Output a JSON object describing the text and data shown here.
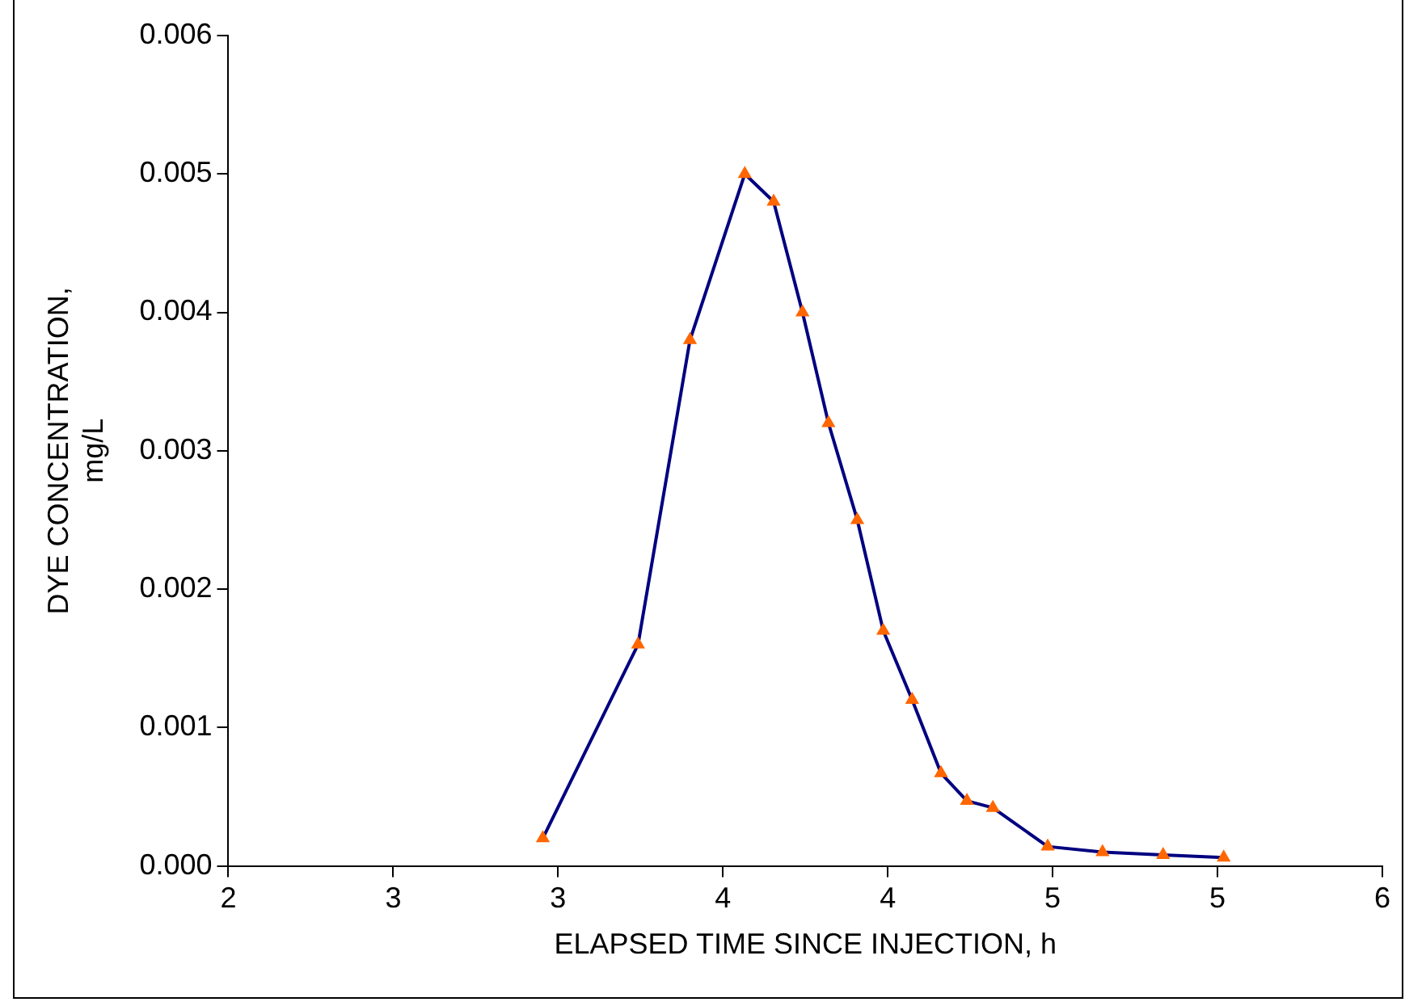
{
  "chart_data": {
    "type": "line",
    "xlabel": "ELAPSED TIME SINCE INJECTION, h",
    "ylabel": "DYE CONCENTRATION,\nmg/L",
    "x": [
      3.09,
      3.42,
      3.6,
      3.79,
      3.89,
      3.99,
      4.08,
      4.18,
      4.27,
      4.37,
      4.47,
      4.56,
      4.65,
      4.84,
      5.03,
      5.24,
      5.45
    ],
    "series": [
      {
        "color": "#000080",
        "colors": [
          "#ff6600",
          "#ff6600",
          "#ff6600",
          "#ff6600",
          "#ff6600",
          "#ff6600",
          "#ff6600",
          "#ff6600",
          "#ff6600",
          "#ff6600",
          "#ff6600",
          "#ff6600",
          "#ff6600",
          "#ff6600",
          "#ff6600",
          "#ff6600",
          "#ff6600"
        ],
        "values": [
          0.0002,
          0.0016,
          0.0038,
          0.005,
          0.0048,
          0.004,
          0.0032,
          0.0025,
          0.0017,
          0.0012,
          0.00067,
          0.00047,
          0.00042,
          0.00014,
          0.0001,
          8e-05,
          6e-05
        ]
      }
    ],
    "xlim": [
      2,
      6
    ],
    "xticks": [
      2,
      {
        "value": 2.5714,
        "label": "3"
      },
      {
        "value": 3.1429,
        "label": "3"
      },
      {
        "value": 3.7143,
        "label": "4"
      },
      {
        "value": 4.2857,
        "label": "4"
      },
      {
        "value": 4.8571,
        "label": "5"
      },
      {
        "value": 5.4286,
        "label": "5"
      },
      6
    ],
    "ylim": [
      0,
      0.006
    ],
    "yticks": [
      {
        "value": 0,
        "label": "0.000"
      },
      {
        "value": 0.001,
        "label": "0.001"
      },
      {
        "value": 0.002,
        "label": "0.002"
      },
      {
        "value": 0.003,
        "label": "0.003"
      },
      {
        "value": 0.004,
        "label": "0.004"
      },
      {
        "value": 0.005,
        "label": "0.005"
      },
      {
        "value": 0.006,
        "label": "0.006"
      }
    ],
    "grid": false,
    "legend": false,
    "marker": "triangle",
    "line_style": "solid"
  }
}
